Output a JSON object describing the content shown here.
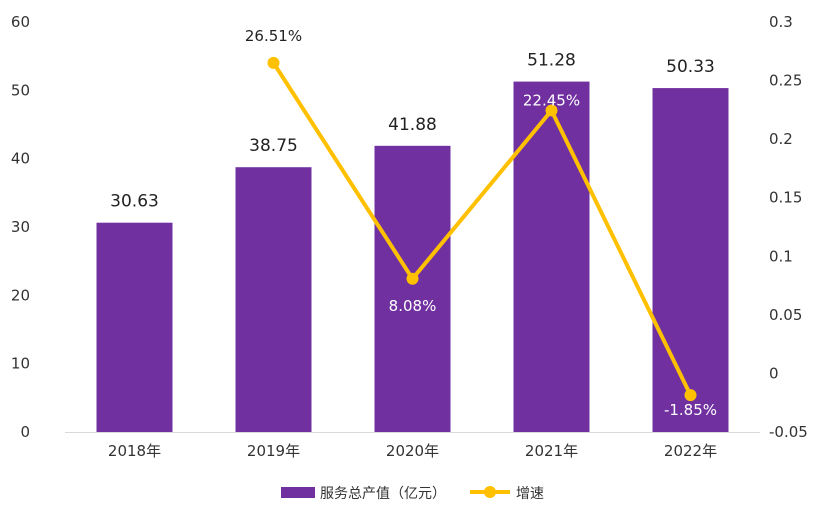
{
  "chart_data": {
    "type": "bar+line",
    "categories": [
      "2018年",
      "2019年",
      "2020年",
      "2021年",
      "2022年"
    ],
    "series": [
      {
        "name": "服务总产值（亿元）",
        "type": "bar",
        "axis": "left",
        "values": [
          30.63,
          38.75,
          41.88,
          51.28,
          50.33
        ],
        "labels": [
          "30.63",
          "38.75",
          "41.88",
          "51.28",
          "50.33"
        ]
      },
      {
        "name": "增速",
        "type": "line",
        "axis": "right",
        "values": [
          null,
          0.2651,
          0.0808,
          0.2245,
          -0.0185
        ],
        "labels": [
          "",
          "26.51%",
          "8.08%",
          "22.45%",
          "-1.85%"
        ]
      }
    ],
    "y_left": {
      "min": 0,
      "max": 60,
      "ticks": [
        "0",
        "10",
        "20",
        "30",
        "40",
        "50",
        "60"
      ]
    },
    "y_right": {
      "min": -0.05,
      "max": 0.3,
      "ticks": [
        "-0.05",
        "0",
        "0.05",
        "0.1",
        "0.15",
        "0.2",
        "0.25",
        "0.3"
      ]
    },
    "legend": "bottom",
    "grid": false,
    "colors": {
      "bar": "#7030a0",
      "line": "#ffc000"
    }
  }
}
